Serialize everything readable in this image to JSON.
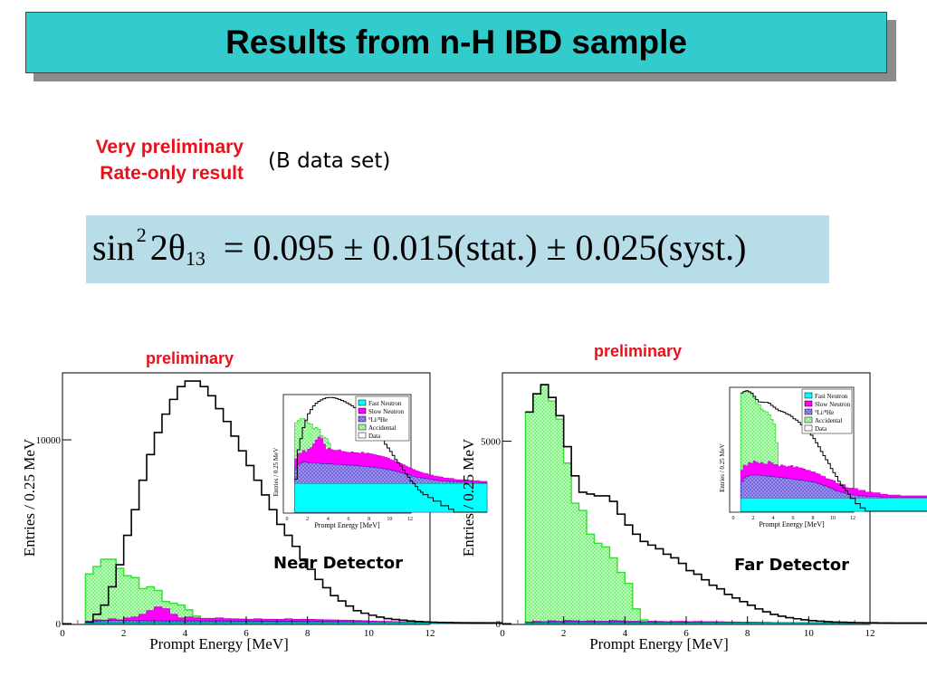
{
  "slide": {
    "title": "Results from n-H IBD sample",
    "note_line1": "Very preliminary",
    "note_line2": "Rate-only result",
    "dataset": "(B data set)",
    "formula": {
      "lhs_sin": "sin",
      "lhs_power": "2",
      "lhs_angle": "2θ",
      "lhs_sub": "13",
      "rhs": "= 0.095 ± 0.015(stat.) ± 0.025(syst.)"
    },
    "prelim_near": "preliminary",
    "prelim_far": "preliminary",
    "near_label": "Near Detector",
    "far_label": "Far Detector"
  },
  "colors": {
    "title_bg": "#33cccc",
    "formula_bg": "#b7dde8",
    "accent_red": "#e8101a",
    "fast_neutron": "#00ffff",
    "slow_neutron": "#ff00ff",
    "li_he": "#6a5acd",
    "accidental": "#66ff66",
    "data": "#000000"
  },
  "chart_data": [
    {
      "type": "area",
      "panel": "near",
      "xlabel": "Prompt Energy [MeV]",
      "ylabel": "Entries / 0.25 MeV",
      "xlim": [
        0,
        12
      ],
      "ylim": [
        0,
        13500
      ],
      "xticks": [
        "0",
        "2",
        "4",
        "6",
        "8",
        "10",
        "12"
      ],
      "yticks": [
        {
          "v": 0,
          "label": "0"
        },
        {
          "v": 10000,
          "label": "10000"
        }
      ],
      "x_start": 0.75,
      "bin_width": 0.25,
      "series": [
        {
          "role": "data",
          "values": [
            80,
            500,
            1000,
            2000,
            3200,
            4800,
            6200,
            7800,
            9200,
            10400,
            11400,
            12200,
            12900,
            13200,
            13200,
            12900,
            12400,
            11700,
            11000,
            10200,
            9400,
            8600,
            7800,
            7000,
            6200,
            5400,
            4800,
            4200,
            3500,
            2950,
            2400,
            1950,
            1520,
            1230,
            950,
            700,
            560,
            450,
            350,
            270,
            220,
            180,
            140,
            110,
            90,
            70,
            60,
            50,
            40,
            35,
            30,
            30,
            25,
            25,
            20,
            20,
            20,
            15,
            15,
            15,
            12,
            12,
            10,
            10,
            10,
            10,
            8,
            8,
            8,
            6,
            6,
            6,
            5,
            5,
            5
          ]
        },
        {
          "role": "accidental",
          "values": [
            2700,
            3100,
            3500,
            3500,
            3000,
            2600,
            2500,
            1900,
            2000,
            1800,
            1200,
            1100,
            1000,
            750,
            400,
            250,
            120,
            60,
            40,
            40,
            40,
            40,
            40,
            40,
            40,
            40,
            40,
            40,
            40,
            40,
            40,
            40,
            40,
            40,
            40,
            40,
            40,
            30,
            30,
            30,
            30,
            30,
            30,
            30,
            30,
            30,
            30,
            30,
            20,
            20,
            20,
            20,
            20,
            20,
            20,
            20,
            20,
            20,
            20,
            20,
            20,
            20,
            20,
            20,
            20,
            20,
            20,
            20,
            20,
            20,
            20,
            20,
            20,
            20,
            20
          ]
        },
        {
          "role": "slow_neutron",
          "values": [
            120,
            200,
            180,
            250,
            200,
            300,
            350,
            500,
            700,
            900,
            800,
            500,
            300,
            350,
            300,
            280,
            280,
            300,
            260,
            250,
            240,
            230,
            250,
            230,
            230,
            220,
            250,
            220,
            230,
            220,
            210,
            200,
            190,
            180,
            170,
            160,
            150,
            130,
            120,
            110,
            100,
            90,
            80,
            70,
            60,
            55,
            50,
            45,
            40,
            35,
            30,
            30,
            25,
            25,
            20,
            20,
            20,
            20,
            15,
            15,
            15,
            15,
            10,
            10,
            10,
            10,
            10,
            10,
            8,
            8,
            8,
            8,
            6,
            6,
            6
          ]
        },
        {
          "role": "li_he",
          "values": [
            100,
            140,
            160,
            170,
            170,
            160,
            160,
            160,
            155,
            155,
            150,
            150,
            150,
            145,
            145,
            140,
            140,
            140,
            135,
            135,
            130,
            130,
            130,
            125,
            125,
            120,
            120,
            115,
            115,
            110,
            110,
            105,
            100,
            100,
            95,
            90,
            85,
            80,
            75,
            70,
            65,
            60,
            55,
            50,
            45,
            40,
            35,
            30,
            28,
            26,
            24,
            22,
            20,
            18,
            16,
            14,
            12,
            10,
            10,
            10,
            8,
            8,
            8,
            6,
            6,
            6,
            5,
            5,
            5,
            4,
            4,
            4,
            3,
            3,
            3
          ]
        },
        {
          "role": "fast_neutron",
          "values": [
            60,
            60,
            60,
            60,
            60,
            60,
            60,
            60,
            60,
            60,
            60,
            60,
            60,
            60,
            60,
            60,
            60,
            60,
            60,
            60,
            60,
            60,
            60,
            60,
            60,
            60,
            60,
            60,
            60,
            60,
            60,
            60,
            60,
            60,
            60,
            60,
            60,
            60,
            60,
            60,
            60,
            60,
            60,
            60,
            60,
            60,
            60,
            60,
            60,
            60,
            60,
            60,
            60,
            60,
            60,
            60,
            60,
            60,
            60,
            60,
            60,
            60,
            60,
            60,
            60,
            60,
            60,
            60,
            60,
            60,
            60,
            60,
            60,
            60,
            60
          ]
        }
      ],
      "inset": {
        "xlabel": "Prompt Energy [MeV]",
        "ylabel": "Entries / 0.25 MeV",
        "xticks": [
          "0",
          "2",
          "4",
          "6",
          "8",
          "10",
          "12"
        ],
        "y_log": true,
        "legend": [
          "Fast Neutron",
          "Slow Neutron",
          "⁹Li/⁸He",
          "Accidental",
          "Data"
        ],
        "legend_placement": "top-right"
      }
    },
    {
      "type": "area",
      "panel": "far",
      "xlabel": "Prompt Energy [MeV]",
      "ylabel": "Entries / 0.25 MeV",
      "xlim": [
        0,
        12
      ],
      "ylim": [
        0,
        6800
      ],
      "xticks": [
        "0",
        "2",
        "4",
        "6",
        "8",
        "10",
        "12"
      ],
      "yticks": [
        {
          "v": 0,
          "label": "0"
        },
        {
          "v": 5000,
          "label": "5000"
        }
      ],
      "x_start": 0.75,
      "bin_width": 0.25,
      "series": [
        {
          "role": "data",
          "values": [
            5800,
            6300,
            6550,
            6200,
            5700,
            4850,
            4050,
            3600,
            3550,
            3500,
            3500,
            3350,
            3000,
            2700,
            2450,
            2250,
            2150,
            2050,
            1900,
            1800,
            1650,
            1450,
            1350,
            1200,
            1050,
            950,
            800,
            700,
            600,
            500,
            400,
            320,
            250,
            200,
            160,
            130,
            100,
            80,
            65,
            50,
            40,
            35,
            30,
            25,
            20,
            20,
            15,
            15,
            12,
            12,
            10,
            10,
            10,
            8,
            8,
            8,
            6,
            6,
            6,
            5,
            5,
            5,
            4,
            4,
            4,
            3,
            3,
            3,
            3,
            3,
            3,
            2,
            2,
            2,
            2
          ]
        },
        {
          "role": "accidental",
          "values": [
            5800,
            6300,
            6550,
            6100,
            5600,
            4400,
            3300,
            3100,
            2450,
            2200,
            2100,
            1800,
            1400,
            1100,
            400,
            100,
            60,
            40,
            40,
            40,
            40,
            30,
            30,
            30,
            30,
            30,
            30,
            30,
            30,
            30,
            30,
            20,
            20,
            20,
            20,
            20,
            20,
            20,
            20,
            20,
            20,
            20,
            20,
            20,
            20,
            20,
            20,
            20,
            20,
            20,
            20,
            20,
            20,
            20,
            20,
            20,
            20,
            20,
            20,
            20,
            20,
            20,
            20,
            20,
            20,
            20,
            20,
            20,
            20,
            20,
            20,
            20,
            20,
            20,
            20
          ]
        },
        {
          "role": "slow_neutron",
          "values": [
            40,
            60,
            50,
            70,
            60,
            80,
            70,
            60,
            70,
            60,
            60,
            80,
            70,
            60,
            60,
            50,
            60,
            55,
            50,
            55,
            60,
            50,
            55,
            50,
            50,
            45,
            40,
            40,
            35,
            35,
            30,
            30,
            25,
            25,
            20,
            20,
            20,
            20,
            15,
            15,
            15,
            15,
            10,
            10,
            10,
            10,
            10,
            8,
            8,
            8,
            6,
            6,
            6,
            5,
            5,
            5,
            4,
            4,
            4,
            3,
            3,
            3,
            3,
            3,
            2,
            2,
            2,
            2,
            2,
            2,
            2,
            2,
            2,
            2,
            2
          ]
        },
        {
          "role": "li_he",
          "values": [
            30,
            40,
            45,
            48,
            50,
            50,
            50,
            50,
            48,
            48,
            46,
            46,
            45,
            44,
            43,
            42,
            41,
            40,
            39,
            38,
            37,
            36,
            35,
            34,
            33,
            32,
            31,
            30,
            29,
            28,
            26,
            24,
            22,
            20,
            18,
            16,
            14,
            12,
            10,
            9,
            8,
            7,
            6,
            5,
            5,
            4,
            4,
            3,
            3,
            3,
            2,
            2,
            2,
            2,
            2,
            2,
            1,
            1,
            1,
            1,
            1,
            1,
            1,
            1,
            1,
            1,
            1,
            1,
            1,
            1,
            1,
            1,
            1,
            1,
            1
          ]
        },
        {
          "role": "fast_neutron",
          "values": [
            20,
            20,
            20,
            20,
            20,
            20,
            20,
            20,
            20,
            20,
            20,
            20,
            20,
            20,
            20,
            20,
            20,
            20,
            20,
            20,
            20,
            20,
            20,
            20,
            20,
            20,
            20,
            20,
            20,
            20,
            20,
            20,
            20,
            20,
            20,
            20,
            20,
            20,
            20,
            20,
            20,
            20,
            20,
            20,
            20,
            20,
            20,
            20,
            20,
            20,
            20,
            20,
            20,
            20,
            20,
            20,
            20,
            20,
            20,
            20,
            20,
            20,
            20,
            20,
            20,
            20,
            20,
            20,
            20,
            20,
            20,
            20,
            20,
            20,
            20
          ]
        }
      ],
      "inset": {
        "xlabel": "Prompt Energy [MeV]",
        "ylabel": "Entries / 0.25 MeV",
        "xticks": [
          "0",
          "2",
          "4",
          "6",
          "8",
          "10",
          "12"
        ],
        "y_log": true,
        "legend": [
          "Fast Neutron",
          "Slow Neutron",
          "⁹Li/⁸He",
          "Accidental",
          "Data"
        ],
        "legend_placement": "top-right"
      }
    }
  ]
}
